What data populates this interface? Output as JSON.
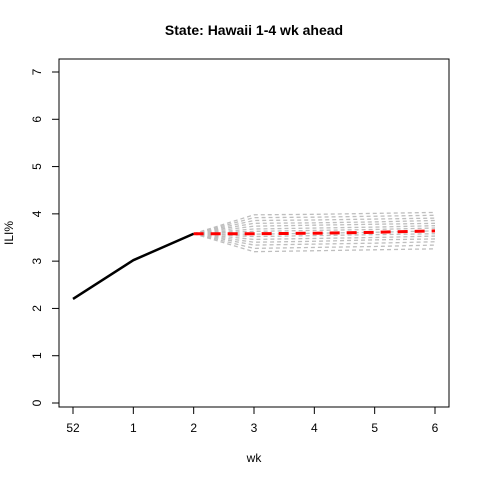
{
  "chart_data": {
    "type": "line",
    "title": "State: Hawaii 1-4 wk ahead",
    "xlabel": "wk",
    "ylabel": "ILI%",
    "x_tick_labels": [
      "52",
      "1",
      "2",
      "3",
      "4",
      "5",
      "6"
    ],
    "xlim": [
      0,
      6
    ],
    "ylim": [
      0,
      7
    ],
    "y_ticks": [
      0,
      1,
      2,
      3,
      4,
      5,
      6,
      7
    ],
    "grid": false,
    "legend": "none",
    "colors": {
      "observed": "#000000",
      "ensemble": "#bebebe",
      "forecast": "#ff0000"
    },
    "observed": {
      "x": [
        0,
        1,
        2
      ],
      "y": [
        2.2,
        3.02,
        3.58
      ]
    },
    "forecast_mean": {
      "x": [
        2,
        3,
        4,
        5,
        6
      ],
      "y": [
        3.58,
        3.58,
        3.59,
        3.61,
        3.64
      ]
    },
    "ensemble": [
      {
        "x": [
          2,
          3,
          4,
          5,
          6
        ],
        "y": [
          3.58,
          3.98,
          3.99,
          4.01,
          4.03
        ]
      },
      {
        "x": [
          2,
          3,
          4,
          5,
          6
        ],
        "y": [
          3.58,
          3.92,
          3.93,
          3.95,
          3.97
        ]
      },
      {
        "x": [
          2,
          3,
          4,
          5,
          6
        ],
        "y": [
          3.58,
          3.86,
          3.87,
          3.89,
          3.91
        ]
      },
      {
        "x": [
          2,
          3,
          4,
          5,
          6
        ],
        "y": [
          3.58,
          3.8,
          3.81,
          3.83,
          3.86
        ]
      },
      {
        "x": [
          2,
          3,
          4,
          5,
          6
        ],
        "y": [
          3.58,
          3.74,
          3.76,
          3.78,
          3.8
        ]
      },
      {
        "x": [
          2,
          3,
          4,
          5,
          6
        ],
        "y": [
          3.58,
          3.68,
          3.7,
          3.72,
          3.75
        ]
      },
      {
        "x": [
          2,
          3,
          4,
          5,
          6
        ],
        "y": [
          3.58,
          3.63,
          3.65,
          3.67,
          3.7
        ]
      },
      {
        "x": [
          2,
          3,
          4,
          5,
          6
        ],
        "y": [
          3.58,
          3.57,
          3.59,
          3.61,
          3.64
        ]
      },
      {
        "x": [
          2,
          3,
          4,
          5,
          6
        ],
        "y": [
          3.58,
          3.52,
          3.54,
          3.56,
          3.58
        ]
      },
      {
        "x": [
          2,
          3,
          4,
          5,
          6
        ],
        "y": [
          3.58,
          3.46,
          3.48,
          3.5,
          3.53
        ]
      },
      {
        "x": [
          2,
          3,
          4,
          5,
          6
        ],
        "y": [
          3.58,
          3.4,
          3.42,
          3.45,
          3.47
        ]
      },
      {
        "x": [
          2,
          3,
          4,
          5,
          6
        ],
        "y": [
          3.58,
          3.34,
          3.36,
          3.38,
          3.41
        ]
      },
      {
        "x": [
          2,
          3,
          4,
          5,
          6
        ],
        "y": [
          3.58,
          3.27,
          3.29,
          3.31,
          3.34
        ]
      },
      {
        "x": [
          2,
          3,
          4,
          5,
          6
        ],
        "y": [
          3.58,
          3.2,
          3.22,
          3.24,
          3.26
        ]
      }
    ]
  }
}
